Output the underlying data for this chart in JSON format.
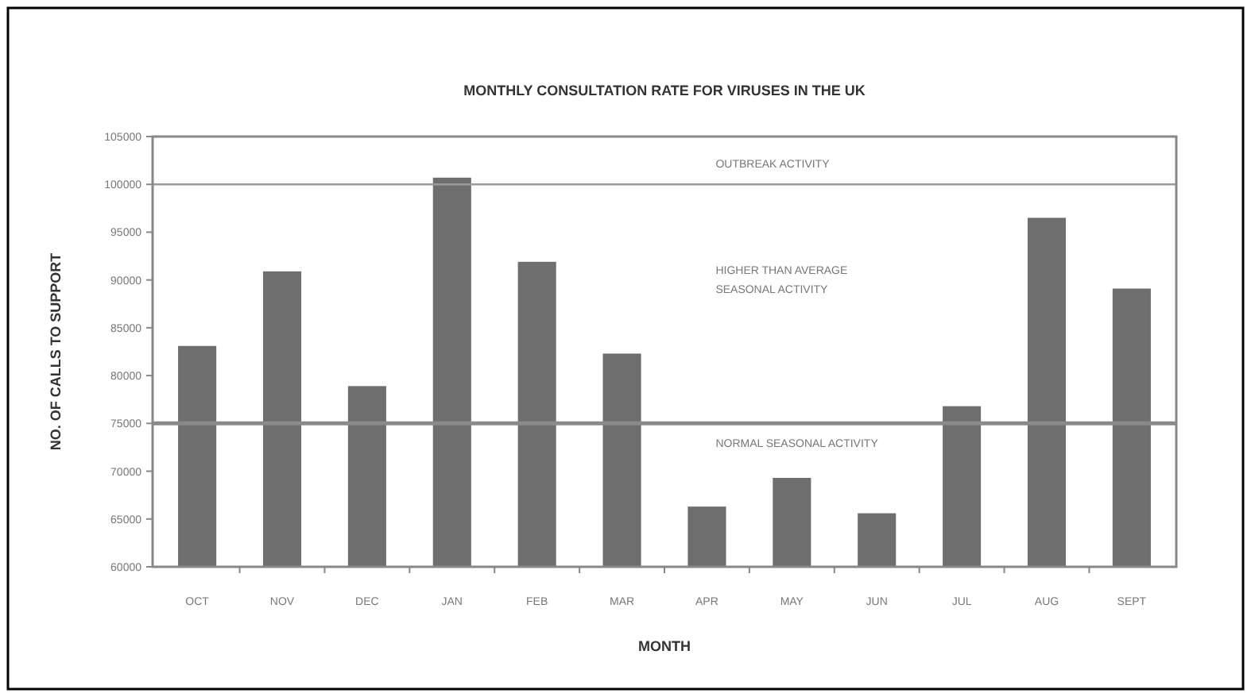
{
  "chart_data": {
    "type": "bar",
    "title": "MONTHLY CONSULTATION RATE FOR VIRUSES IN THE UK",
    "xlabel": "MONTH",
    "ylabel": "NO. OF CALLS TO SUPPORT",
    "categories": [
      "OCT",
      "NOV",
      "DEC",
      "JAN",
      "FEB",
      "MAR",
      "APR",
      "MAY",
      "JUN",
      "JUL",
      "AUG",
      "SEPT"
    ],
    "values": [
      83100,
      90900,
      78900,
      100700,
      91900,
      82300,
      66300,
      69300,
      65600,
      76800,
      96500,
      89100
    ],
    "color": "#6e6e6e",
    "ylim": [
      60000,
      105000
    ],
    "yticks": [
      60000,
      65000,
      70000,
      75000,
      80000,
      85000,
      90000,
      95000,
      100000,
      105000
    ],
    "ref_lines": [
      {
        "axis": "y",
        "value": 100000,
        "color": "#9a9a9a"
      },
      {
        "axis": "y",
        "value": 75000,
        "color": "#8a8a8a"
      }
    ],
    "annotations": [
      "OUTBREAK ACTIVITY",
      "HIGHER THAN AVERAGE SEASONAL ACTIVITY",
      "NORMAL SEASONAL ACTIVITY"
    ]
  }
}
